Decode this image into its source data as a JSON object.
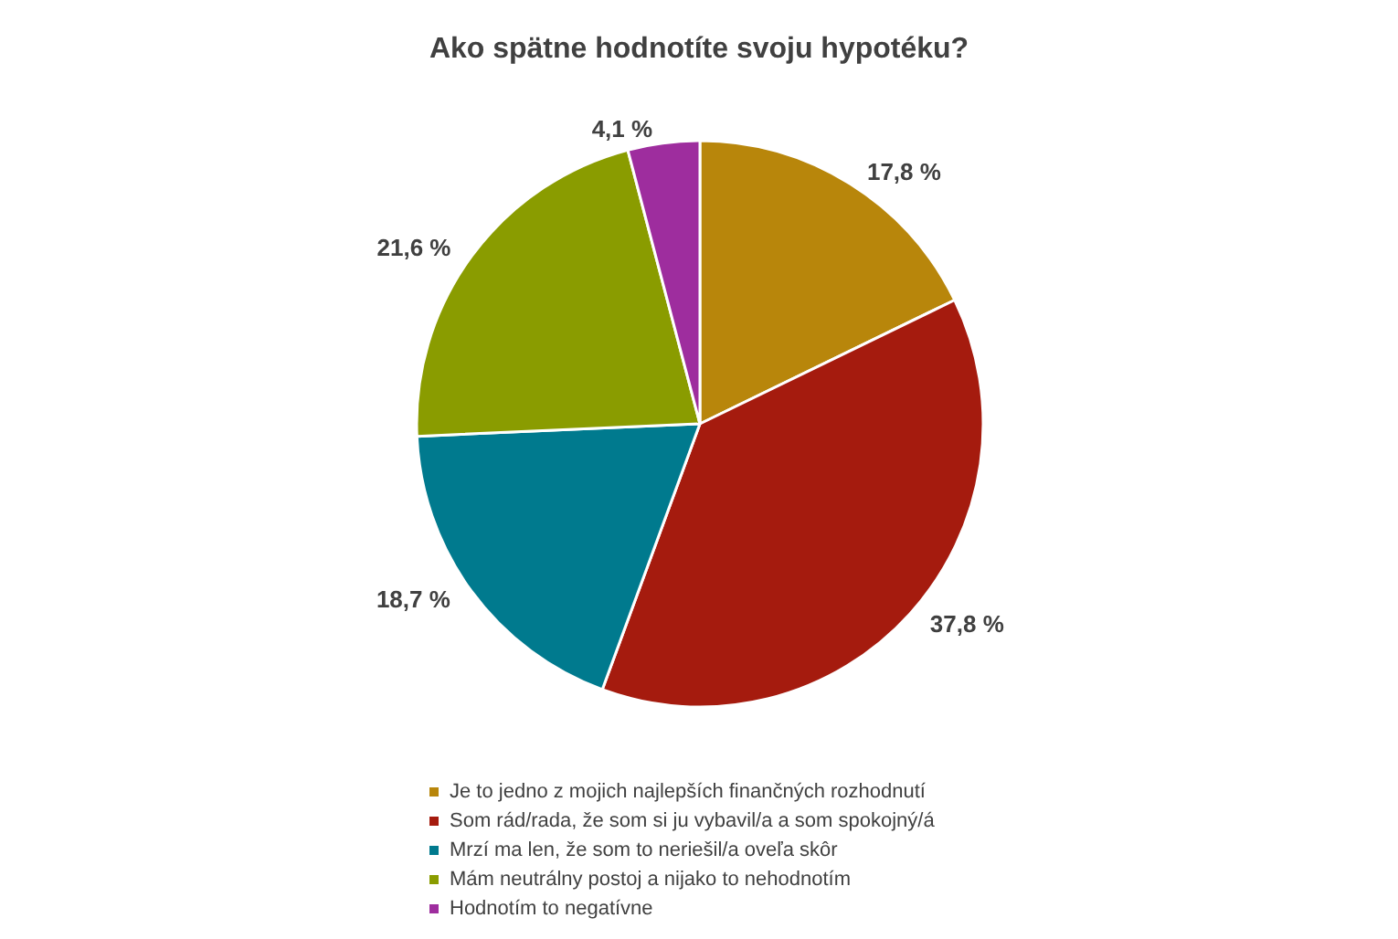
{
  "chart_data": {
    "type": "pie",
    "title": "Ako spätne hodnotíte svoju hypotéku?",
    "categories": [
      "Je to jedno z mojich najlepších finančných rozhodnutí",
      "Som rád/rada, že som si ju vybavil/a a som spokojný/á",
      "Mrzí ma len, že som to neriešil/a oveľa skôr",
      "Mám neutrálny postoj a nijako to nehodnotím",
      "Hodnotím to negatívne"
    ],
    "values": [
      17.8,
      37.8,
      18.7,
      21.6,
      4.1
    ],
    "value_labels": [
      "17,8 %",
      "37,8 %",
      "18,7 %",
      "21,6 %",
      "4,1 %"
    ],
    "colors": [
      "#b8860b",
      "#a51b0e",
      "#007a8e",
      "#8a9c00",
      "#9e2d9e"
    ],
    "legend": "bottom"
  }
}
